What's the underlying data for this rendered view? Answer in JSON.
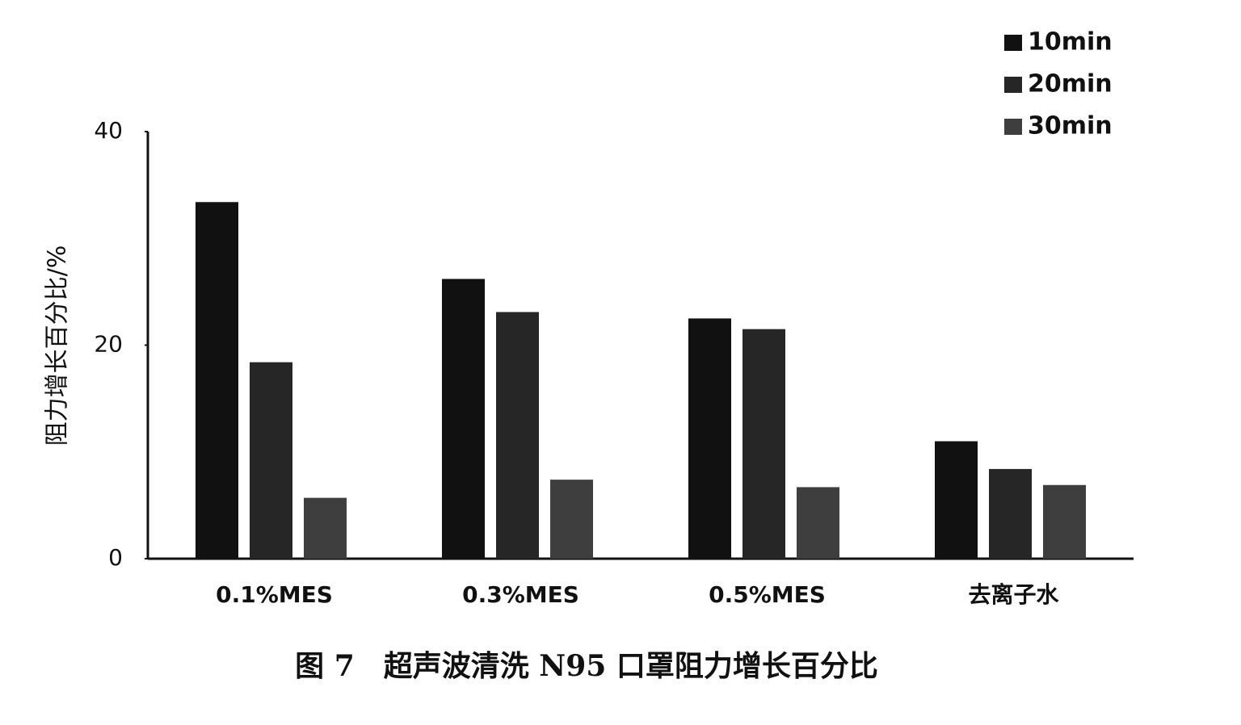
{
  "chart_data": {
    "type": "bar",
    "title": "图 7　超声波清洗 N95 口罩阻力增长百分比",
    "y_label": "阻力增长百分比/%",
    "categories": [
      "0.1%MES",
      "0.3%MES",
      "0.5%MES",
      "去离子水"
    ],
    "series": [
      {
        "name": "10min",
        "color": "#111111",
        "values": [
          33.4,
          26.2,
          22.5,
          11.0
        ]
      },
      {
        "name": "20min",
        "color": "#262626",
        "values": [
          18.4,
          23.1,
          21.5,
          8.4
        ]
      },
      {
        "name": "30min",
        "color": "#3e3e3e",
        "values": [
          5.7,
          7.4,
          6.7,
          6.9
        ]
      }
    ],
    "ylim": [
      0,
      40
    ],
    "yticks": [
      0,
      20,
      40
    ],
    "grid": false,
    "legend": "top-right"
  }
}
